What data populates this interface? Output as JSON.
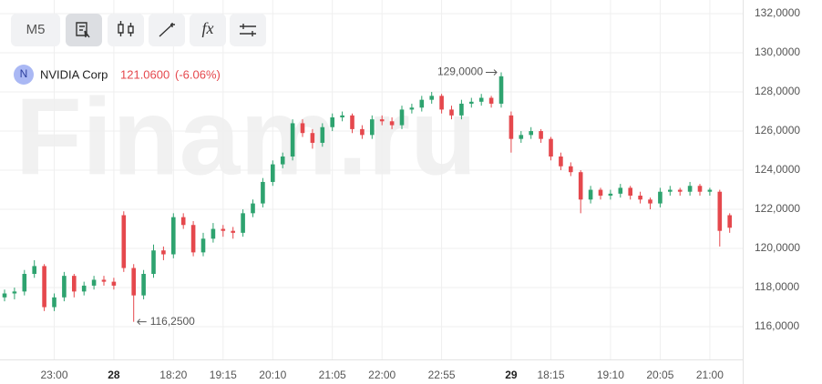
{
  "toolbar": {
    "interval": "M5"
  },
  "header": {
    "icon": "N",
    "instrument": "NVIDIA Corp",
    "price": "121.0600",
    "change": "(-6.06%)"
  },
  "watermark": "Finam.ru",
  "chart_data": {
    "type": "candlestick",
    "categories": [
      null,
      null,
      null,
      null,
      null,
      "23:00",
      null,
      null,
      null,
      null,
      null,
      "28",
      null,
      null,
      null,
      null,
      null,
      "18:20",
      null,
      null,
      null,
      null,
      "19:15",
      null,
      null,
      null,
      null,
      "20:10",
      null,
      null,
      null,
      null,
      null,
      "21:05",
      null,
      null,
      null,
      null,
      "22:00",
      null,
      null,
      null,
      null,
      null,
      "22:55",
      null,
      null,
      null,
      null,
      null,
      null,
      "29",
      null,
      null,
      null,
      "18:15",
      null,
      null,
      null,
      null,
      null,
      "19:10",
      null,
      null,
      null,
      null,
      "20:05",
      null,
      null,
      null,
      null,
      "21:00",
      null,
      null
    ],
    "open": [
      117.5,
      117.7,
      117.8,
      118.7,
      119.1,
      117.0,
      117.5,
      118.6,
      117.8,
      118.1,
      118.4,
      118.3,
      121.7,
      119.0,
      117.6,
      118.7,
      119.9,
      119.7,
      121.6,
      121.2,
      119.8,
      120.5,
      121.0,
      120.9,
      120.8,
      121.8,
      122.3,
      123.4,
      124.3,
      124.7,
      126.4,
      125.9,
      125.4,
      126.2,
      126.7,
      126.8,
      126.1,
      125.8,
      126.6,
      126.5,
      126.3,
      127.1,
      127.2,
      127.6,
      127.8,
      127.1,
      126.8,
      127.4,
      127.5,
      127.7,
      127.4,
      126.8,
      125.6,
      125.8,
      126.0,
      125.6,
      124.7,
      124.2,
      123.9,
      122.5,
      123.0,
      122.7,
      122.8,
      123.1,
      122.7,
      122.5,
      122.3,
      122.9,
      123.0,
      122.9,
      123.2,
      122.9,
      122.9,
      121.7
    ],
    "high": [
      117.9,
      118.0,
      118.9,
      119.4,
      119.2,
      117.7,
      118.8,
      118.7,
      118.3,
      118.6,
      118.6,
      118.5,
      121.9,
      119.2,
      118.9,
      120.2,
      120.1,
      121.8,
      121.8,
      121.4,
      120.8,
      121.3,
      121.2,
      121.1,
      122.0,
      122.5,
      123.6,
      124.5,
      124.9,
      126.6,
      126.6,
      126.1,
      126.4,
      126.9,
      127.0,
      126.9,
      126.3,
      126.8,
      126.8,
      126.7,
      127.3,
      127.4,
      127.8,
      128.0,
      127.9,
      127.3,
      127.6,
      127.7,
      127.9,
      127.8,
      129.0,
      127.0,
      126.0,
      126.2,
      126.1,
      125.7,
      124.9,
      124.4,
      124.0,
      123.2,
      123.1,
      123.0,
      123.3,
      123.2,
      122.9,
      122.6,
      123.1,
      123.2,
      123.1,
      123.4,
      123.3,
      123.1,
      123.0,
      121.8
    ],
    "low": [
      117.3,
      117.4,
      117.6,
      118.5,
      116.8,
      116.8,
      117.3,
      117.5,
      117.6,
      117.9,
      118.1,
      117.9,
      118.8,
      116.25,
      117.4,
      118.5,
      119.4,
      119.5,
      121.0,
      119.6,
      119.6,
      120.3,
      120.6,
      120.5,
      120.6,
      121.6,
      122.1,
      123.2,
      124.1,
      124.5,
      125.7,
      125.1,
      125.2,
      126.0,
      126.5,
      125.9,
      125.6,
      125.6,
      126.3,
      126.1,
      126.1,
      126.9,
      127.0,
      127.4,
      126.9,
      126.6,
      126.6,
      127.2,
      127.3,
      127.2,
      127.2,
      124.9,
      125.4,
      125.6,
      125.4,
      124.5,
      124.0,
      123.7,
      121.8,
      122.3,
      122.5,
      122.5,
      122.6,
      122.5,
      122.3,
      122.0,
      122.1,
      122.7,
      122.7,
      122.7,
      122.7,
      122.7,
      120.1,
      120.8
    ],
    "close": [
      117.7,
      117.8,
      118.7,
      119.1,
      117.0,
      117.5,
      118.6,
      117.8,
      118.1,
      118.4,
      118.3,
      118.1,
      119.0,
      117.6,
      118.7,
      119.9,
      119.7,
      121.6,
      121.2,
      119.8,
      120.5,
      121.0,
      120.9,
      120.8,
      121.8,
      122.3,
      123.4,
      124.3,
      124.7,
      126.4,
      125.9,
      125.4,
      126.2,
      126.7,
      126.8,
      126.1,
      125.8,
      126.6,
      126.5,
      126.3,
      127.1,
      127.2,
      127.6,
      127.8,
      127.1,
      126.8,
      127.4,
      127.5,
      127.7,
      127.4,
      128.8,
      125.6,
      125.8,
      126.0,
      125.6,
      124.7,
      124.2,
      123.9,
      122.5,
      123.0,
      122.7,
      122.8,
      123.1,
      122.7,
      122.5,
      122.3,
      122.9,
      123.0,
      122.9,
      123.2,
      122.9,
      123.0,
      120.9,
      121.06
    ],
    "up_color": "#2ea36f",
    "down_color": "#e5484d",
    "ylim": [
      114.3,
      132.7
    ],
    "yticks": [
      {
        "value": 116,
        "label": "116,0000"
      },
      {
        "value": 118,
        "label": "118,0000"
      },
      {
        "value": 120,
        "label": "120,0000"
      },
      {
        "value": 122,
        "label": "122,0000"
      },
      {
        "value": 124,
        "label": "124,0000"
      },
      {
        "value": 126,
        "label": "126,0000"
      },
      {
        "value": 128,
        "label": "128,0000"
      },
      {
        "value": 130,
        "label": "130,0000"
      },
      {
        "value": 132,
        "label": "132,0000"
      }
    ],
    "grid": true,
    "annotations": [
      {
        "index": 50,
        "value": 129,
        "label": "129,0000"
      },
      {
        "index": 13,
        "value": 116.25,
        "label": "116,2500"
      }
    ]
  }
}
